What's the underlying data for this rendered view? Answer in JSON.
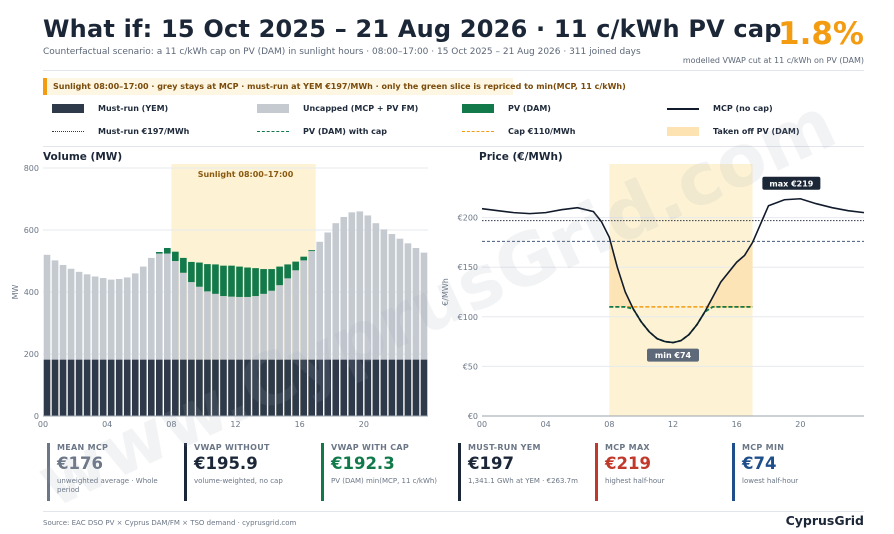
{
  "header": {
    "title": "What if: 15 Oct 2025 – 21 Aug 2026  ·  11 c/kWh PV cap",
    "subtitle": "Counterfactual scenario: a 11 c/kWh cap on PV (DAM) in sunlight hours  ·  08:00–17:00  ·  15 Oct 2025 – 21 Aug 2026  ·  311 joined days",
    "headline_value": "1.8%",
    "headline_caption": "modelled VWAP cut at 11 c/kWh on PV (DAM)"
  },
  "banner": "Sunlight 08:00–17:00  ·  grey stays at MCP  ·  must-run at YEM €197/MWh  ·  only the green slice is repriced to min(MCP, 11 c/kWh)",
  "legend": {
    "must_run": "Must-run (YEM)",
    "uncapped": "Uncapped (MCP + PV FM)",
    "pv_dam": "PV (DAM)",
    "mcp_no_cap": "MCP (no cap)",
    "must_run_price": "Must-run €197/MWh",
    "pv_with_cap": "PV (DAM) with cap",
    "cap": "Cap €110/MWh",
    "taken_off": "Taken off PV (DAM)"
  },
  "colors": {
    "must_run": "#2e3a4a",
    "uncapped": "#c5cad1",
    "pv_dam": "#127a4a",
    "mcp_line": "#111b2b",
    "cap": "#f39c12",
    "sunlight": "#fdf3d4",
    "taken_off": "#fde2b2",
    "headline": "#f39c12",
    "blue_dashed": "#44597c"
  },
  "chart_data": [
    {
      "type": "bar",
      "title": "Volume (MW)",
      "ylabel": "MW",
      "ylim": [
        0,
        800
      ],
      "yticks": [
        "0",
        "200",
        "400",
        "600",
        "800"
      ],
      "xticks": [
        "00",
        "04",
        "08",
        "12",
        "16",
        "20"
      ],
      "sunlight_label": "Sunlight  08:00–17:00",
      "sunlight_window": [
        8,
        17
      ],
      "x": [
        0,
        0.5,
        1,
        1.5,
        2,
        2.5,
        3,
        3.5,
        4,
        4.5,
        5,
        5.5,
        6,
        6.5,
        7,
        7.5,
        8,
        8.5,
        9,
        9.5,
        10,
        10.5,
        11,
        11.5,
        12,
        12.5,
        13,
        13.5,
        14,
        14.5,
        15,
        15.5,
        16,
        16.5,
        17,
        17.5,
        18,
        18.5,
        19,
        19.5,
        20,
        20.5,
        21,
        21.5,
        22,
        22.5,
        23,
        23.5
      ],
      "series": [
        {
          "name": "Must-run (YEM)",
          "values": [
            182,
            182,
            182,
            182,
            182,
            182,
            182,
            182,
            182,
            182,
            182,
            182,
            182,
            182,
            182,
            182,
            182,
            182,
            182,
            182,
            182,
            182,
            182,
            182,
            182,
            182,
            182,
            182,
            182,
            182,
            182,
            182,
            182,
            182,
            182,
            182,
            182,
            182,
            182,
            182,
            182,
            182,
            182,
            182,
            182,
            182,
            182,
            182
          ]
        },
        {
          "name": "Uncapped (MCP + PV FM)",
          "values": [
            338,
            320,
            305,
            293,
            283,
            275,
            268,
            263,
            258,
            260,
            265,
            278,
            300,
            328,
            342,
            342,
            318,
            280,
            250,
            235,
            220,
            212,
            205,
            203,
            202,
            202,
            205,
            212,
            222,
            240,
            262,
            288,
            320,
            350,
            380,
            410,
            440,
            460,
            475,
            478,
            465,
            440,
            420,
            405,
            390,
            375,
            360,
            345
          ]
        },
        {
          "name": "PV (DAM)",
          "values": [
            0,
            0,
            0,
            0,
            0,
            0,
            0,
            0,
            0,
            0,
            0,
            0,
            0,
            0,
            5,
            18,
            30,
            48,
            65,
            78,
            88,
            95,
            98,
            100,
            98,
            95,
            90,
            80,
            70,
            60,
            45,
            28,
            12,
            3,
            0,
            0,
            0,
            0,
            0,
            0,
            0,
            0,
            0,
            0,
            0,
            0,
            0,
            0
          ]
        }
      ]
    },
    {
      "type": "line",
      "title": "Price (€/MWh)",
      "ylabel": "€/MWh",
      "ylim": [
        0,
        250
      ],
      "yticks": [
        "€0",
        "€50",
        "€100",
        "€150",
        "€200"
      ],
      "xticks": [
        "00",
        "04",
        "08",
        "12",
        "16",
        "20"
      ],
      "x": [
        0,
        1,
        2,
        3,
        4,
        5,
        6,
        7,
        7.5,
        8,
        8.5,
        9,
        9.5,
        10,
        10.5,
        11,
        11.5,
        12,
        12.5,
        13,
        13.5,
        14,
        14.5,
        15,
        16,
        16.5,
        17,
        18,
        19,
        20,
        21,
        22,
        23,
        24
      ],
      "series": [
        {
          "name": "MCP (no cap)",
          "values": [
            209,
            207,
            205,
            204,
            205,
            208,
            210,
            206,
            196,
            180,
            150,
            125,
            108,
            95,
            85,
            78,
            75,
            74,
            76,
            82,
            92,
            105,
            120,
            135,
            155,
            162,
            175,
            212,
            218,
            219,
            214,
            210,
            207,
            205
          ]
        },
        {
          "name": "PV (DAM) with cap",
          "values": [
            null,
            null,
            null,
            null,
            null,
            null,
            null,
            null,
            null,
            110,
            110,
            110,
            108,
            95,
            85,
            78,
            75,
            74,
            76,
            82,
            92,
            105,
            110,
            110,
            110,
            110,
            110,
            null,
            null,
            null,
            null,
            null,
            null,
            null
          ]
        }
      ],
      "reference_lines": {
        "must_run": 197,
        "blue_dashed": 176,
        "cap": 110
      },
      "annotations": {
        "max_label": "max €219",
        "max_x": 19.5,
        "max_y": 219,
        "min_label": "min €74",
        "min_x": 12,
        "min_y": 74
      }
    }
  ],
  "cards": [
    {
      "label": "MEAN MCP",
      "value": "€176",
      "sub": "unweighted average · Whole period",
      "color": "#6b7686"
    },
    {
      "label": "VWAP WITHOUT",
      "value": "€195.9",
      "sub": "volume-weighted, no cap",
      "color": "#1b2637"
    },
    {
      "label": "VWAP WITH CAP",
      "value": "€192.3",
      "sub": "PV (DAM) min(MCP, 11 c/kWh)",
      "color": "#127a4a"
    },
    {
      "label": "MUST-RUN YEM",
      "value": "€197",
      "sub": "1,341.1 GWh at YEM · €263.7m",
      "color": "#1b2637"
    },
    {
      "label": "MCP MAX",
      "value": "€219",
      "sub": "highest half-hour",
      "color": "#c0392b"
    },
    {
      "label": "MCP MIN",
      "value": "€74",
      "sub": "lowest half-hour",
      "color": "#1f4f8a"
    }
  ],
  "footer": "Source: EAC DSO PV  ×  Cyprus DAM/FM  ×  TSO demand  ·  cyprusgrid.com",
  "brand": "CyprusGrid",
  "watermark": "www.CyprusGrid.com"
}
